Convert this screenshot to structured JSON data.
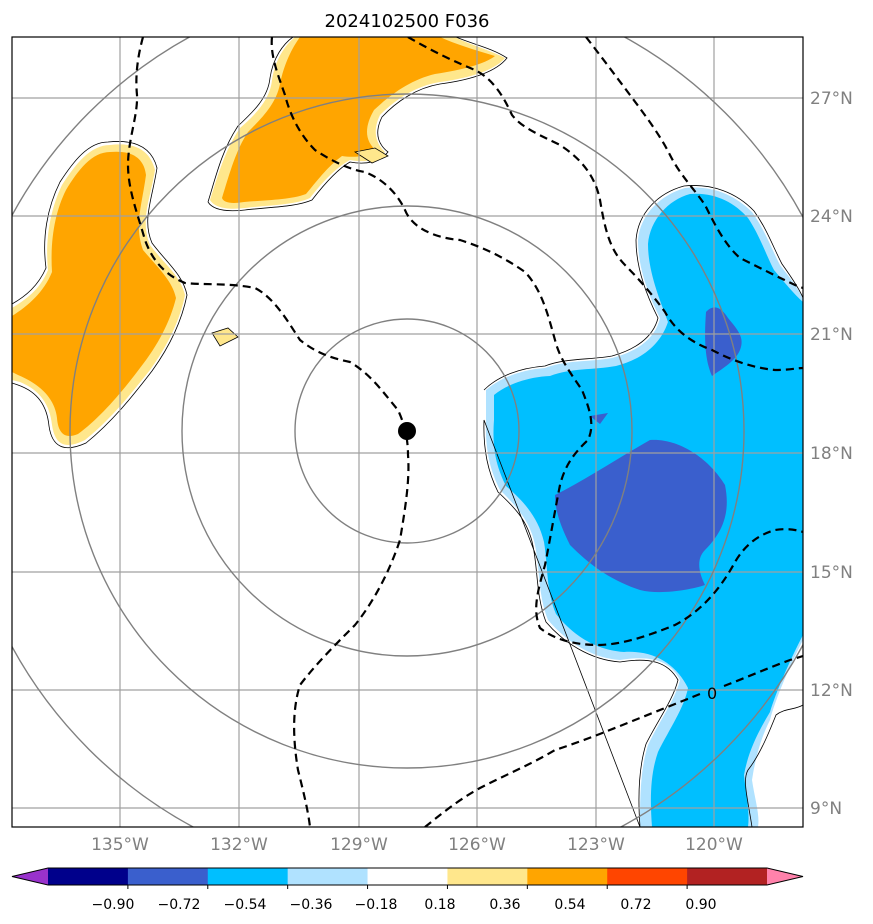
{
  "title": "2024102500 F036",
  "map": {
    "lon_ticks": [
      "135°W",
      "132°W",
      "129°W",
      "126°W",
      "123°W",
      "120°W"
    ],
    "lat_ticks": [
      "27°N",
      "24°N",
      "21°N",
      "18°N",
      "15°N",
      "12°N",
      "9°N"
    ],
    "storm_center_marker": "filled black dot",
    "zero_contour_label": "0",
    "range_ring_color": "#808080",
    "gridline_color": "#a0a0a0",
    "contour_style": "dashed black"
  },
  "colorbar": {
    "labels": [
      "−0.90",
      "−0.72",
      "−0.54",
      "−0.36",
      "−0.18",
      "0.18",
      "0.36",
      "0.54",
      "0.72",
      "0.90"
    ],
    "colors": [
      "#9932cc",
      "#00008b",
      "#3a5fcd",
      "#00bfff",
      "#b0e2ff",
      "#ffffff",
      "#ffe78c",
      "#ffa500",
      "#ff4500",
      "#b22222",
      "#ff82ab"
    ]
  }
}
